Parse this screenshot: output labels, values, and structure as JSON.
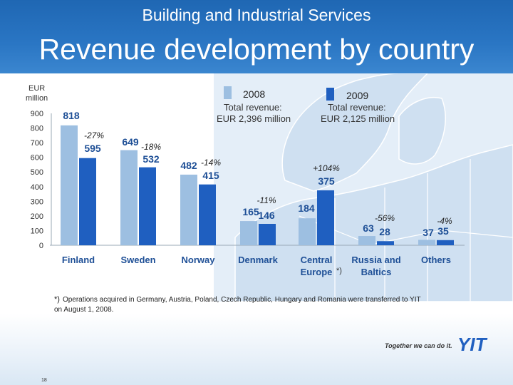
{
  "header": {
    "subtitle": "Building and Industrial Services",
    "title": "Revenue development by country"
  },
  "colors": {
    "header_blue": "#2a76c4",
    "series_2008": "#9dbfe1",
    "series_2009": "#1f5fc0",
    "label_blue": "#1e4f96"
  },
  "chart_data": {
    "type": "bar",
    "ylabel": "EUR million",
    "ylim": [
      0,
      900
    ],
    "yticks": [
      0,
      100,
      200,
      300,
      400,
      500,
      600,
      700,
      800,
      900
    ],
    "grid": false,
    "legend_position": "top",
    "categories": [
      "Finland",
      "Sweden",
      "Norway",
      "Denmark",
      "Central Europe",
      "Russia and Baltics",
      "Others"
    ],
    "category_notes": [
      "",
      "",
      "",
      "",
      "*)",
      "",
      ""
    ],
    "series": [
      {
        "name": "2008",
        "values": [
          818,
          649,
          482,
          165,
          null,
          63,
          37
        ],
        "value_labels": [
          "818",
          "649",
          "482",
          "165",
          "",
          "63",
          "37"
        ],
        "total_label": "Total revenue:",
        "total_value": "EUR 2,396 million"
      },
      {
        "name": "2009",
        "values": [
          595,
          532,
          415,
          146,
          375,
          28,
          35
        ],
        "value_labels": [
          "595",
          "532",
          "415",
          "146",
          "375",
          "28",
          "35"
        ],
        "total_label": "Total revenue:",
        "total_value": "EUR 2,125 million"
      }
    ],
    "extra_bars": [
      {
        "category": "Central Europe",
        "series": "2008",
        "value": 184,
        "label": "184"
      }
    ],
    "changes": [
      "-27%",
      "-18%",
      "-14%",
      "-11%",
      "+104%",
      "-56%",
      "-4%"
    ]
  },
  "footnote": {
    "mark": "*)",
    "text": "Operations acquired in Germany, Austria, Poland, Czech Republic, Hungary and Romania  were transferred to YIT on August 1, 2008."
  },
  "footer": {
    "slogan": "Together we can do it.",
    "logo_text": "YIT",
    "page_number": "18"
  }
}
